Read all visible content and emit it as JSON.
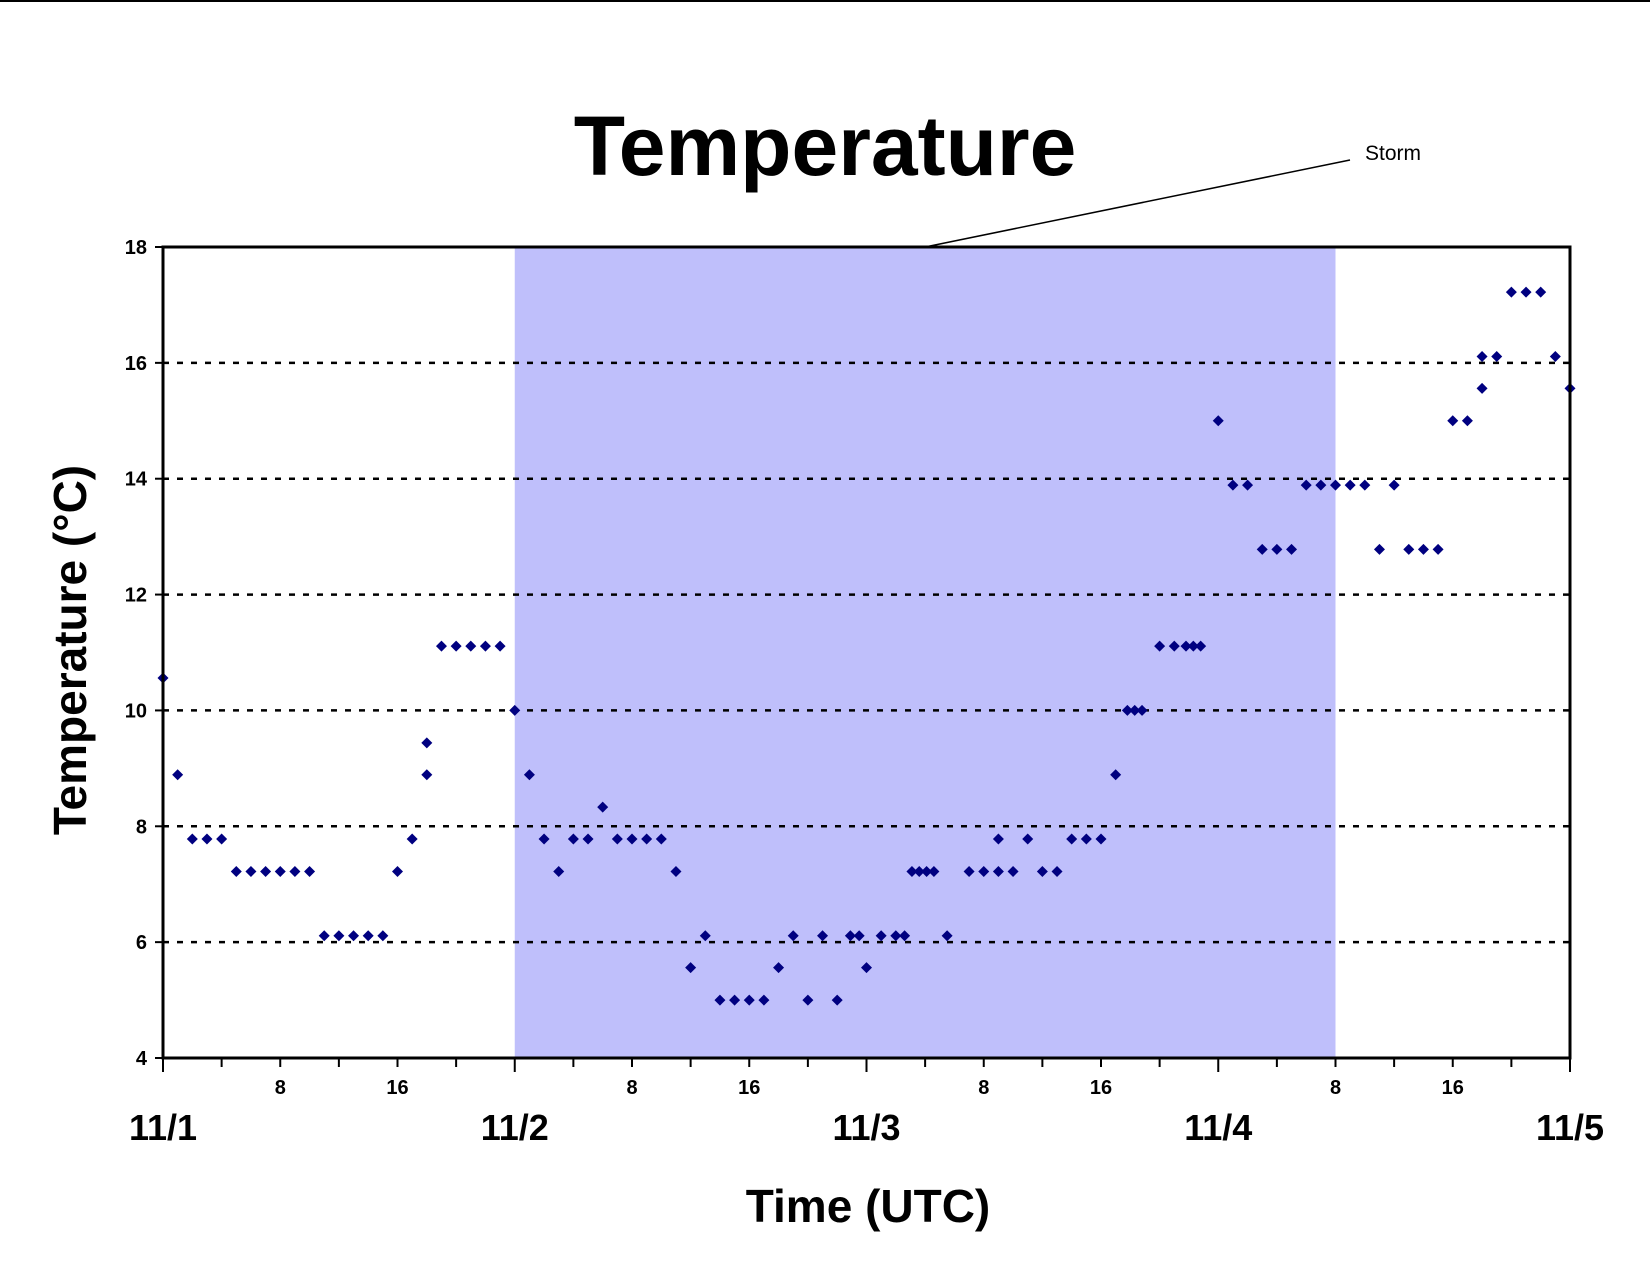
{
  "chart_data": {
    "type": "scatter",
    "title": "Temperature",
    "xlabel": "Time (UTC)",
    "ylabel": "Temperature (°C)",
    "ylim": [
      4,
      18
    ],
    "yticks": [
      "4",
      "6",
      "8",
      "10",
      "12",
      "14",
      "16",
      "18"
    ],
    "xlim_hours": [
      0,
      96
    ],
    "hour_ticks": [
      {
        "h": 8,
        "label": "8"
      },
      {
        "h": 16,
        "label": "16"
      },
      {
        "h": 32,
        "label": "8"
      },
      {
        "h": 40,
        "label": "16"
      },
      {
        "h": 56,
        "label": "8"
      },
      {
        "h": 64,
        "label": "16"
      },
      {
        "h": 80,
        "label": "8"
      },
      {
        "h": 88,
        "label": "16"
      }
    ],
    "day_ticks": [
      {
        "h": 0,
        "label": "11/1"
      },
      {
        "h": 24,
        "label": "11/2"
      },
      {
        "h": 48,
        "label": "11/3"
      },
      {
        "h": 72,
        "label": "11/4"
      },
      {
        "h": 96,
        "label": "11/5"
      }
    ],
    "grid": "horizontal dashed",
    "marker_color": "#000080",
    "shade_color": "#bfbffb",
    "annotation": {
      "text": "Storm",
      "start_hour": 24,
      "end_hour": 80
    },
    "points": [
      [
        0,
        10.56
      ],
      [
        1,
        8.89
      ],
      [
        2,
        7.78
      ],
      [
        3,
        7.78
      ],
      [
        4,
        7.78
      ],
      [
        5,
        7.22
      ],
      [
        6,
        7.22
      ],
      [
        7,
        7.22
      ],
      [
        8,
        7.22
      ],
      [
        9,
        7.22
      ],
      [
        10,
        7.22
      ],
      [
        11,
        6.11
      ],
      [
        12,
        6.11
      ],
      [
        13,
        6.11
      ],
      [
        14,
        6.11
      ],
      [
        15,
        6.11
      ],
      [
        16,
        7.22
      ],
      [
        17,
        7.78
      ],
      [
        18,
        8.89
      ],
      [
        18,
        9.44
      ],
      [
        19,
        11.11
      ],
      [
        20,
        11.11
      ],
      [
        21,
        11.11
      ],
      [
        22,
        11.11
      ],
      [
        23,
        11.11
      ],
      [
        24,
        10.0
      ],
      [
        25,
        8.89
      ],
      [
        26,
        7.78
      ],
      [
        27,
        7.22
      ],
      [
        28,
        7.78
      ],
      [
        29,
        7.78
      ],
      [
        30,
        8.33
      ],
      [
        31,
        7.78
      ],
      [
        32,
        7.78
      ],
      [
        33,
        7.78
      ],
      [
        34,
        7.78
      ],
      [
        35,
        7.22
      ],
      [
        36,
        5.56
      ],
      [
        37,
        6.11
      ],
      [
        38,
        5.0
      ],
      [
        39,
        5.0
      ],
      [
        40,
        5.0
      ],
      [
        41,
        5.0
      ],
      [
        42,
        5.56
      ],
      [
        43,
        6.11
      ],
      [
        44,
        5.0
      ],
      [
        45,
        6.11
      ],
      [
        46,
        5.0
      ],
      [
        46.9,
        6.11
      ],
      [
        47.5,
        6.11
      ],
      [
        48,
        5.56
      ],
      [
        49,
        6.11
      ],
      [
        50,
        6.11
      ],
      [
        50.6,
        6.11
      ],
      [
        51.1,
        7.22
      ],
      [
        51.6,
        7.22
      ],
      [
        52.1,
        7.22
      ],
      [
        52.6,
        7.22
      ],
      [
        53.5,
        6.11
      ],
      [
        55,
        7.22
      ],
      [
        56,
        7.22
      ],
      [
        57,
        7.78
      ],
      [
        57,
        7.22
      ],
      [
        58,
        7.22
      ],
      [
        59,
        7.78
      ],
      [
        60,
        7.22
      ],
      [
        61,
        7.22
      ],
      [
        62,
        7.78
      ],
      [
        63,
        7.78
      ],
      [
        64,
        7.78
      ],
      [
        65,
        8.89
      ],
      [
        65.8,
        10.0
      ],
      [
        66.3,
        10.0
      ],
      [
        66.8,
        10.0
      ],
      [
        68,
        11.11
      ],
      [
        69,
        11.11
      ],
      [
        69.8,
        11.11
      ],
      [
        70.3,
        11.11
      ],
      [
        70.8,
        11.11
      ],
      [
        72,
        15.0
      ],
      [
        73,
        13.89
      ],
      [
        74,
        13.89
      ],
      [
        75,
        12.78
      ],
      [
        76,
        12.78
      ],
      [
        77,
        12.78
      ],
      [
        78,
        13.89
      ],
      [
        79,
        13.89
      ],
      [
        80,
        13.89
      ],
      [
        81,
        13.89
      ],
      [
        82,
        13.89
      ],
      [
        83,
        12.78
      ],
      [
        84,
        13.89
      ],
      [
        85,
        12.78
      ],
      [
        86,
        12.78
      ],
      [
        87,
        12.78
      ],
      [
        88,
        15.0
      ],
      [
        89,
        15.0
      ],
      [
        90,
        15.56
      ],
      [
        90,
        16.11
      ],
      [
        91,
        16.11
      ],
      [
        92,
        17.22
      ],
      [
        93,
        17.22
      ],
      [
        94,
        17.22
      ],
      [
        95,
        16.11
      ],
      [
        96,
        15.56
      ]
    ]
  }
}
